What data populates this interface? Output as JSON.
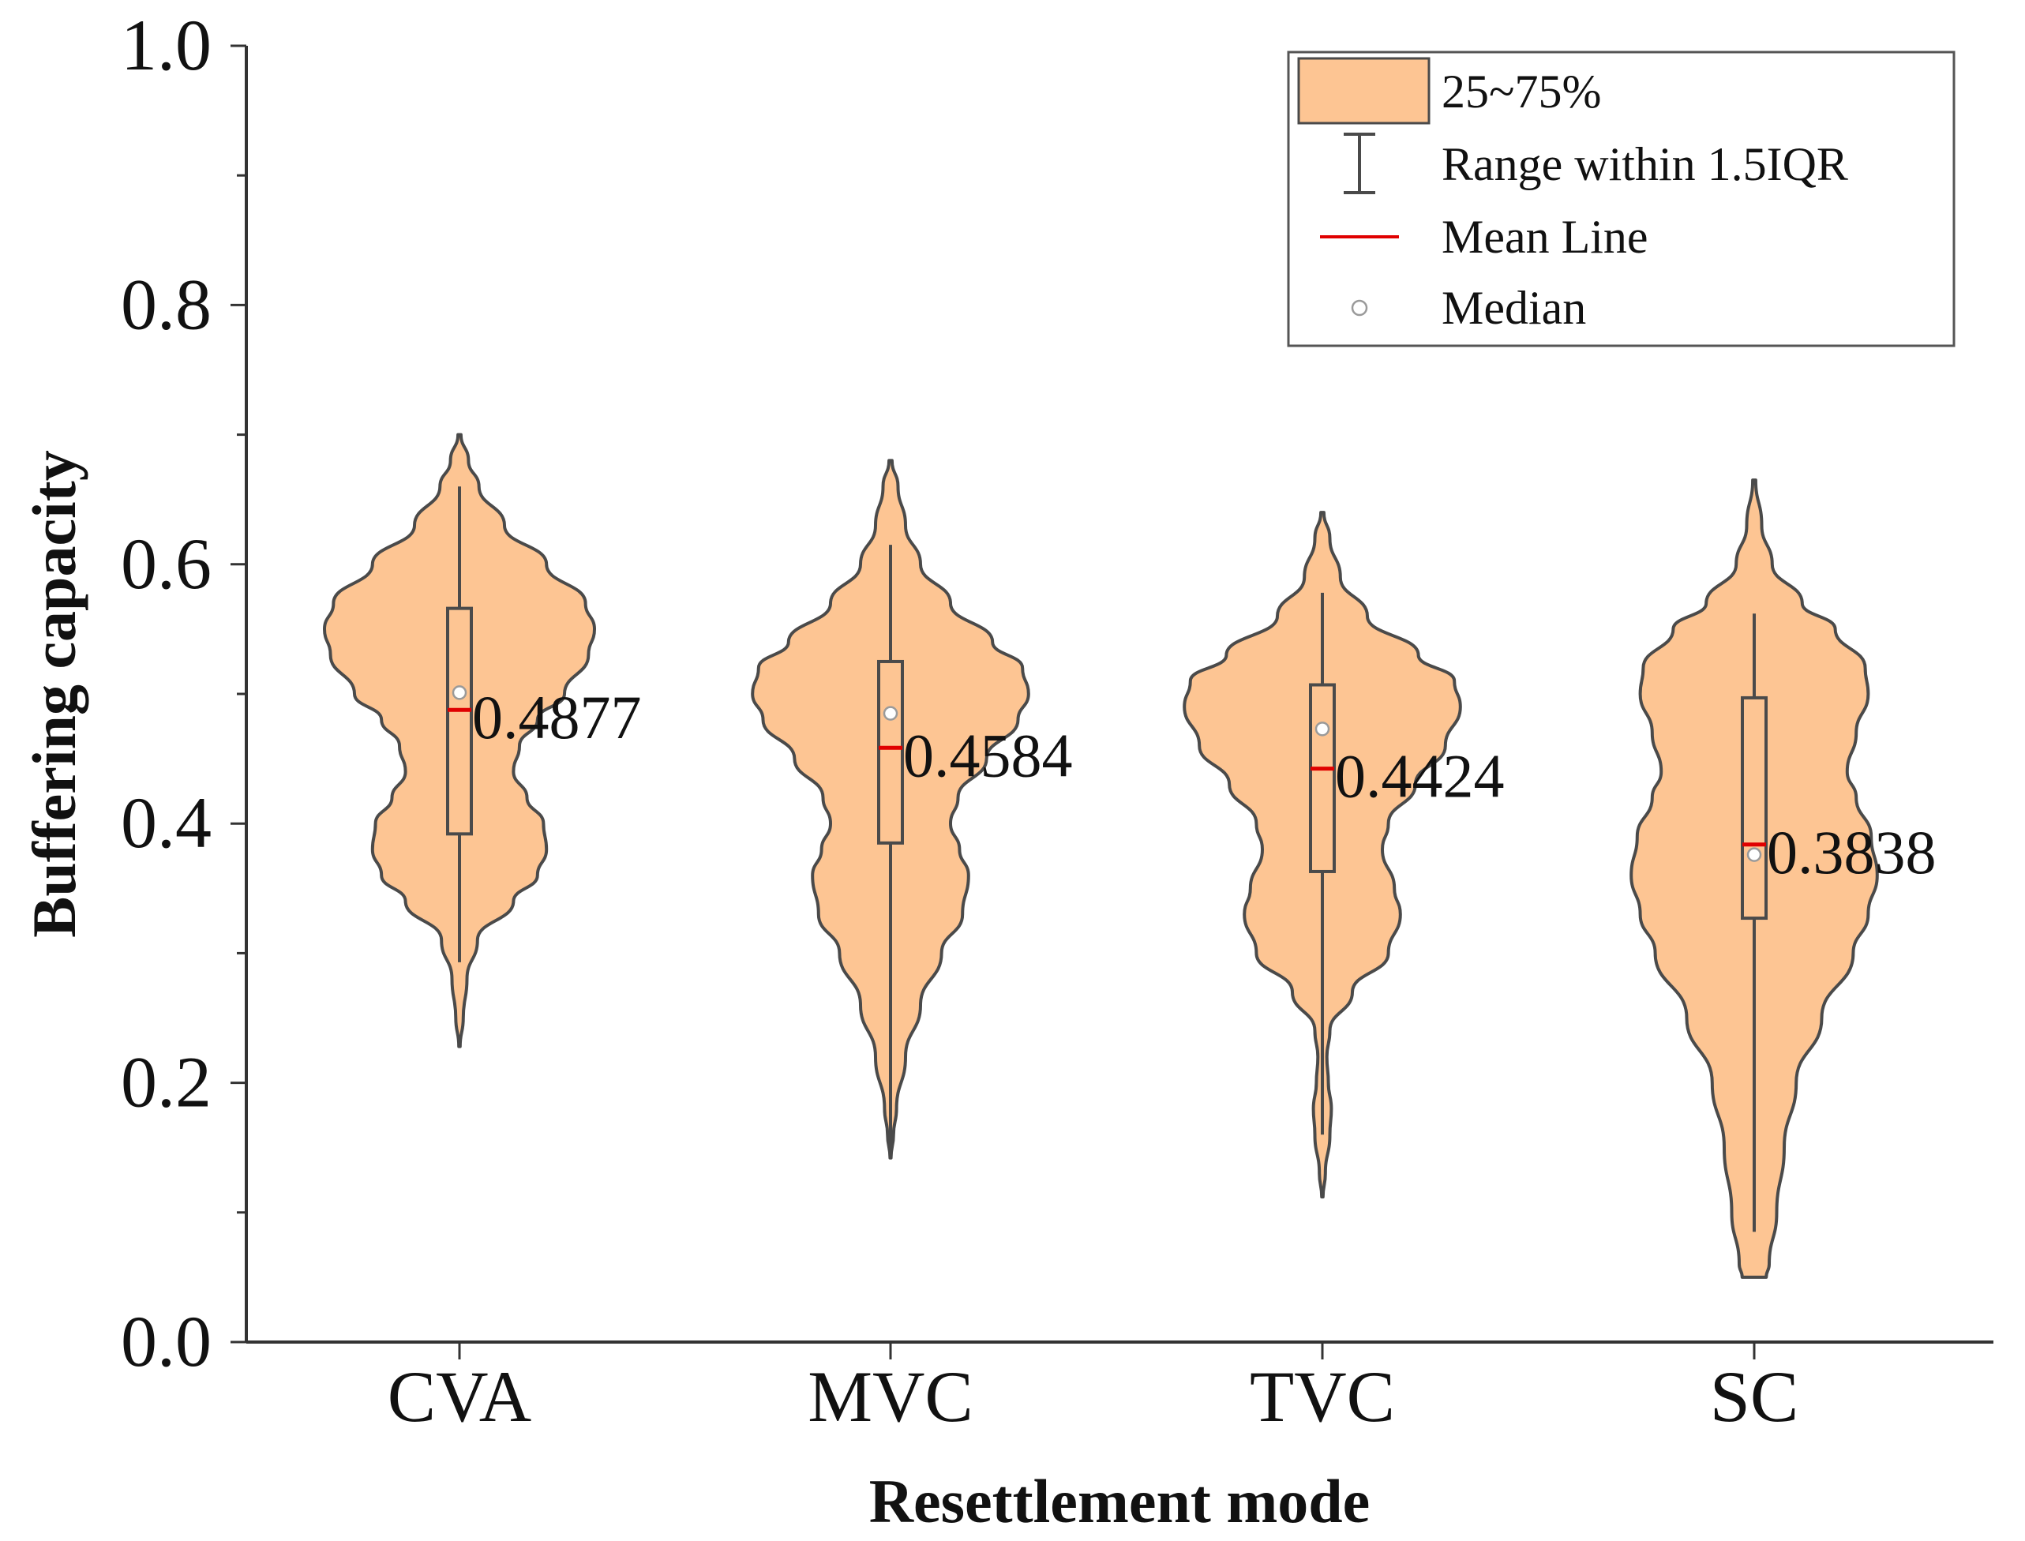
{
  "chart_data": {
    "type": "violin",
    "xlabel": "Resettlement mode",
    "ylabel": "Buffering capacity",
    "ylim": [
      0.0,
      1.0
    ],
    "yticks": [
      "0.0",
      "0.2",
      "0.4",
      "0.6",
      "0.8",
      "1.0"
    ],
    "grid": false,
    "legend_position": "top-right",
    "legend": {
      "box": "25~75%",
      "whisker": "Range within 1.5IQR",
      "mean": "Mean Line",
      "median": "Median"
    },
    "colors": {
      "fill": "#FDC593",
      "outline": "#4a4a4a",
      "mean": "#e00000",
      "median_fill": "#ffffff"
    },
    "categories": [
      "CVA",
      "MVC",
      "TVC",
      "SC"
    ],
    "series": [
      {
        "name": "CVA",
        "mean": 0.4877,
        "mean_label": "0.4877",
        "median": 0.501,
        "q1": 0.392,
        "q3": 0.566,
        "whisker_low": 0.293,
        "whisker_high": 0.66,
        "density": [
          [
            0.228,
            0.004
          ],
          [
            0.25,
            0.025
          ],
          [
            0.28,
            0.05
          ],
          [
            0.31,
            0.12
          ],
          [
            0.34,
            0.36
          ],
          [
            0.36,
            0.52
          ],
          [
            0.38,
            0.58
          ],
          [
            0.4,
            0.56
          ],
          [
            0.42,
            0.45
          ],
          [
            0.44,
            0.36
          ],
          [
            0.46,
            0.4
          ],
          [
            0.48,
            0.52
          ],
          [
            0.5,
            0.7
          ],
          [
            0.53,
            0.86
          ],
          [
            0.55,
            0.9
          ],
          [
            0.57,
            0.84
          ],
          [
            0.6,
            0.58
          ],
          [
            0.63,
            0.3
          ],
          [
            0.66,
            0.13
          ],
          [
            0.68,
            0.06
          ],
          [
            0.7,
            0.01
          ]
        ]
      },
      {
        "name": "MVC",
        "mean": 0.4584,
        "mean_label": "0.4584",
        "median": 0.485,
        "q1": 0.385,
        "q3": 0.525,
        "whisker_low": 0.143,
        "whisker_high": 0.615,
        "density": [
          [
            0.142,
            0.003
          ],
          [
            0.16,
            0.02
          ],
          [
            0.18,
            0.04
          ],
          [
            0.22,
            0.1
          ],
          [
            0.26,
            0.2
          ],
          [
            0.3,
            0.34
          ],
          [
            0.33,
            0.48
          ],
          [
            0.36,
            0.52
          ],
          [
            0.38,
            0.46
          ],
          [
            0.4,
            0.4
          ],
          [
            0.42,
            0.45
          ],
          [
            0.45,
            0.64
          ],
          [
            0.48,
            0.85
          ],
          [
            0.5,
            0.92
          ],
          [
            0.52,
            0.88
          ],
          [
            0.54,
            0.68
          ],
          [
            0.57,
            0.4
          ],
          [
            0.6,
            0.2
          ],
          [
            0.63,
            0.1
          ],
          [
            0.66,
            0.05
          ],
          [
            0.68,
            0.01
          ]
        ]
      },
      {
        "name": "TVC",
        "mean": 0.4424,
        "mean_label": "0.4424",
        "median": 0.473,
        "q1": 0.363,
        "q3": 0.507,
        "whisker_low": 0.16,
        "whisker_high": 0.578,
        "density": [
          [
            0.112,
            0.004
          ],
          [
            0.13,
            0.02
          ],
          [
            0.16,
            0.05
          ],
          [
            0.18,
            0.06
          ],
          [
            0.2,
            0.04
          ],
          [
            0.22,
            0.03
          ],
          [
            0.24,
            0.05
          ],
          [
            0.27,
            0.2
          ],
          [
            0.3,
            0.44
          ],
          [
            0.33,
            0.52
          ],
          [
            0.35,
            0.48
          ],
          [
            0.38,
            0.4
          ],
          [
            0.4,
            0.44
          ],
          [
            0.43,
            0.62
          ],
          [
            0.46,
            0.82
          ],
          [
            0.49,
            0.92
          ],
          [
            0.51,
            0.88
          ],
          [
            0.53,
            0.64
          ],
          [
            0.56,
            0.3
          ],
          [
            0.59,
            0.12
          ],
          [
            0.62,
            0.05
          ],
          [
            0.64,
            0.01
          ]
        ]
      },
      {
        "name": "SC",
        "mean": 0.3838,
        "mean_label": "0.3838",
        "median": 0.376,
        "q1": 0.327,
        "q3": 0.497,
        "whisker_low": 0.085,
        "whisker_high": 0.562,
        "density": [
          [
            0.05,
            0.08
          ],
          [
            0.06,
            0.1
          ],
          [
            0.1,
            0.15
          ],
          [
            0.15,
            0.2
          ],
          [
            0.2,
            0.28
          ],
          [
            0.25,
            0.45
          ],
          [
            0.3,
            0.66
          ],
          [
            0.33,
            0.76
          ],
          [
            0.36,
            0.82
          ],
          [
            0.39,
            0.78
          ],
          [
            0.42,
            0.68
          ],
          [
            0.44,
            0.62
          ],
          [
            0.47,
            0.68
          ],
          [
            0.5,
            0.76
          ],
          [
            0.52,
            0.74
          ],
          [
            0.55,
            0.54
          ],
          [
            0.57,
            0.32
          ],
          [
            0.6,
            0.12
          ],
          [
            0.63,
            0.05
          ],
          [
            0.665,
            0.01
          ]
        ]
      }
    ]
  }
}
